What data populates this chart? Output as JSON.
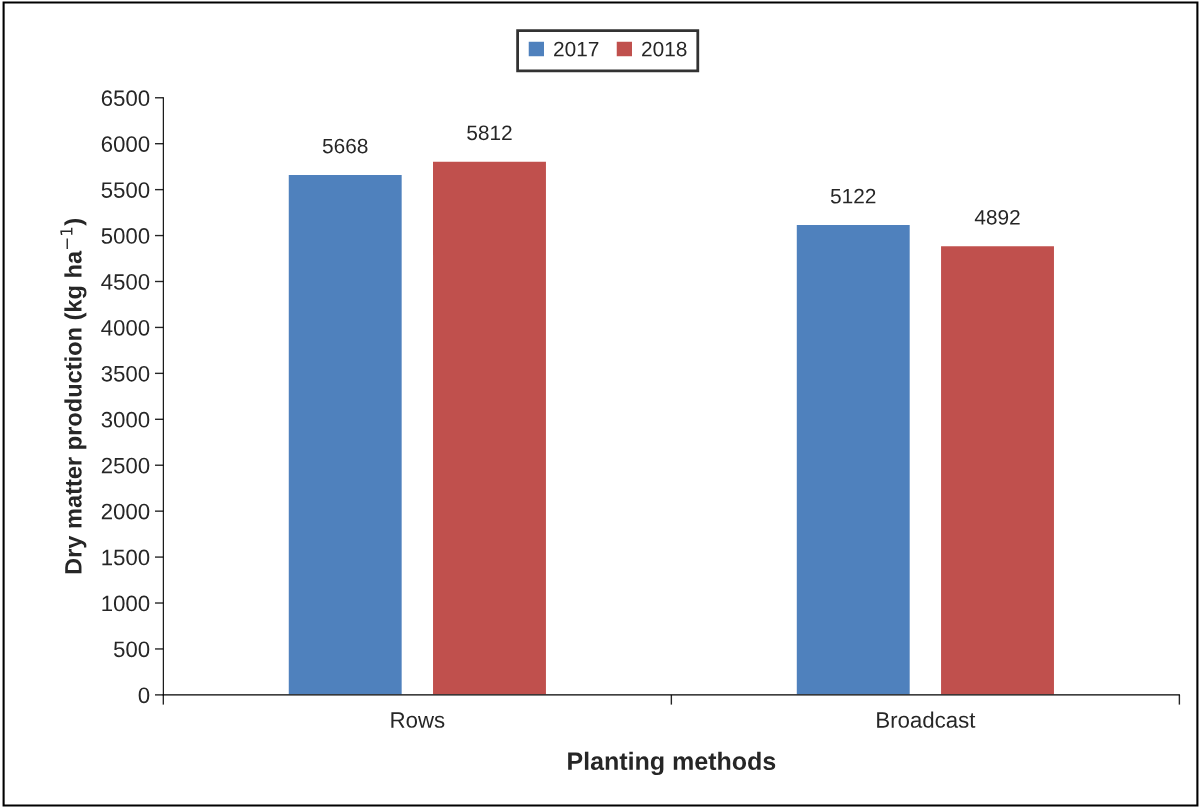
{
  "chart_data": {
    "type": "bar",
    "xlabel": "Planting methods",
    "ylabel": "Dry matter production (kg ha$^{−1}$)",
    "categories": [
      "Rows",
      "Broadcast"
    ],
    "series": [
      {
        "name": "2017",
        "color": "#4f81bd",
        "values": [
          5668,
          5122
        ]
      },
      {
        "name": "2018",
        "color": "#c0504d",
        "values": [
          5812,
          4892
        ]
      }
    ],
    "ylim": [
      0,
      6500
    ],
    "yticks": [
      0,
      500,
      1000,
      1500,
      2000,
      2500,
      3000,
      3500,
      4000,
      4500,
      5000,
      5500,
      6000,
      6500
    ],
    "data_labels": true,
    "legend": "top",
    "grid": false
  }
}
